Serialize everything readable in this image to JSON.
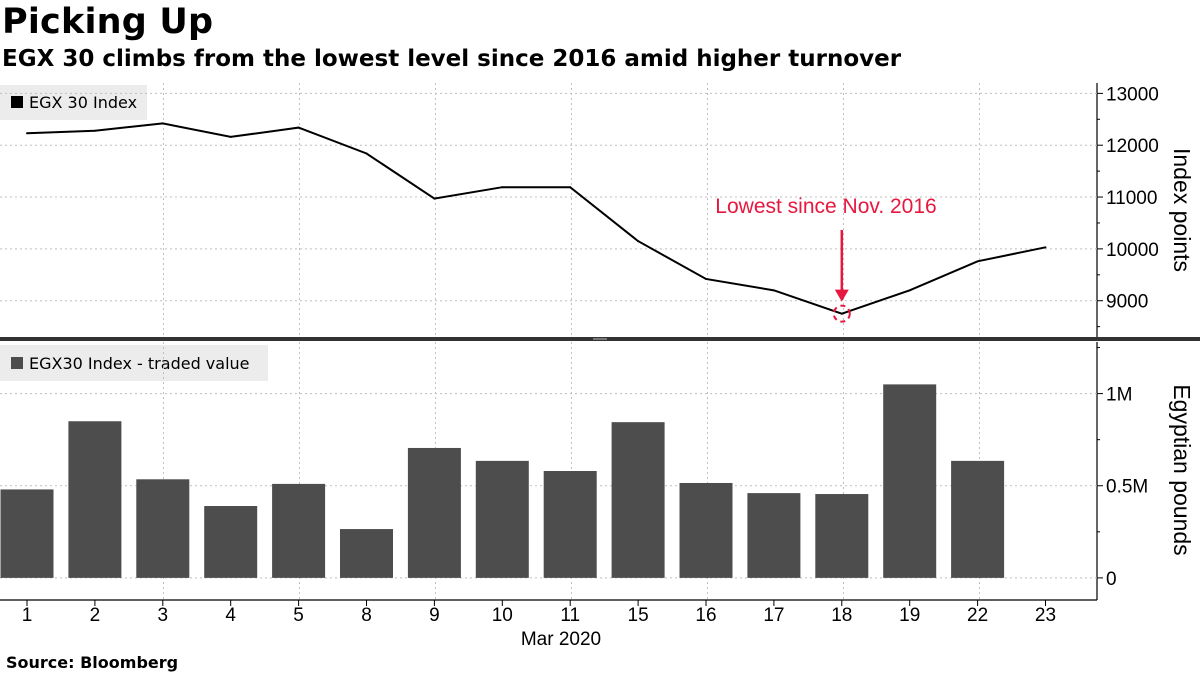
{
  "header": {
    "title": "Picking Up",
    "subtitle": "EGX 30 climbs from the lowest level since 2016 amid higher turnover"
  },
  "footer": {
    "source": "Source: Bloomberg"
  },
  "colors": {
    "line": "#000000",
    "bars": "#4d4d4d",
    "annotation": "#e8173f",
    "grid": "#bfbfbf"
  },
  "chart_data": [
    {
      "type": "line",
      "legend": "EGX 30 Index",
      "ylabel": "Index points",
      "ylim": [
        8300,
        13200
      ],
      "yticks": [
        9000,
        10000,
        11000,
        12000,
        13000
      ],
      "ytick_labels": [
        "9000",
        "10000",
        "11000",
        "12000",
        "13000"
      ],
      "legend_position": "top-left",
      "grid": true,
      "categories": [
        "1",
        "2",
        "3",
        "4",
        "5",
        "8",
        "9",
        "10",
        "11",
        "15",
        "16",
        "17",
        "18",
        "19",
        "22",
        "23"
      ],
      "series": [
        {
          "name": "EGX 30 Index",
          "values": [
            12230,
            12280,
            12420,
            12160,
            12340,
            11840,
            10970,
            11190,
            11190,
            10150,
            9420,
            9200,
            8750,
            9200,
            9760,
            10030
          ]
        }
      ],
      "annotation": {
        "text": "Lowest since Nov. 2016",
        "category": "18",
        "value": 8750
      }
    },
    {
      "type": "bar",
      "legend": "EGX30 Index - traded value",
      "ylabel": "Egyptian pounds",
      "ylim": [
        -120000,
        1280000
      ],
      "yticks": [
        0,
        500000,
        1000000
      ],
      "ytick_labels": [
        "0",
        "0.5M",
        "1M"
      ],
      "legend_position": "top-left",
      "grid": true,
      "categories": [
        "1",
        "2",
        "3",
        "4",
        "5",
        "8",
        "9",
        "10",
        "11",
        "15",
        "16",
        "17",
        "18",
        "19",
        "22",
        "23"
      ],
      "xlabel": "Mar 2020",
      "series": [
        {
          "name": "EGX30 Index - traded value",
          "values": [
            480000,
            850000,
            535000,
            390000,
            510000,
            265000,
            705000,
            635000,
            580000,
            845000,
            515000,
            460000,
            455000,
            1050000,
            635000,
            null
          ]
        }
      ]
    }
  ]
}
